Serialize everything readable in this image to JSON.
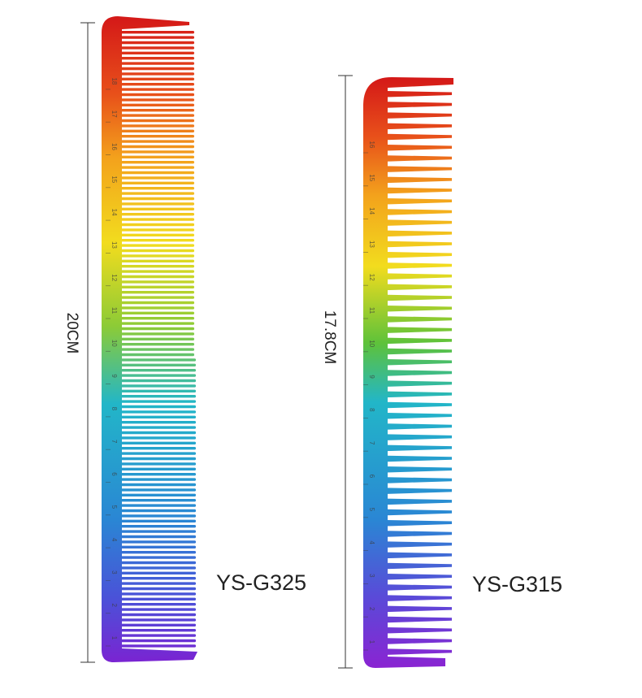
{
  "products": [
    {
      "model": "YS-G325",
      "length_label": "20CM",
      "ruler_labels": [
        1,
        2,
        3,
        4,
        5,
        6,
        7,
        8,
        9,
        10,
        11,
        12,
        13,
        14,
        15,
        16,
        17,
        18
      ]
    },
    {
      "model": "YS-G315",
      "length_label": "17.8CM",
      "ruler_labels": [
        1,
        2,
        3,
        4,
        5,
        6,
        7,
        8,
        9,
        10,
        11,
        12,
        13,
        14,
        15,
        16
      ]
    }
  ]
}
